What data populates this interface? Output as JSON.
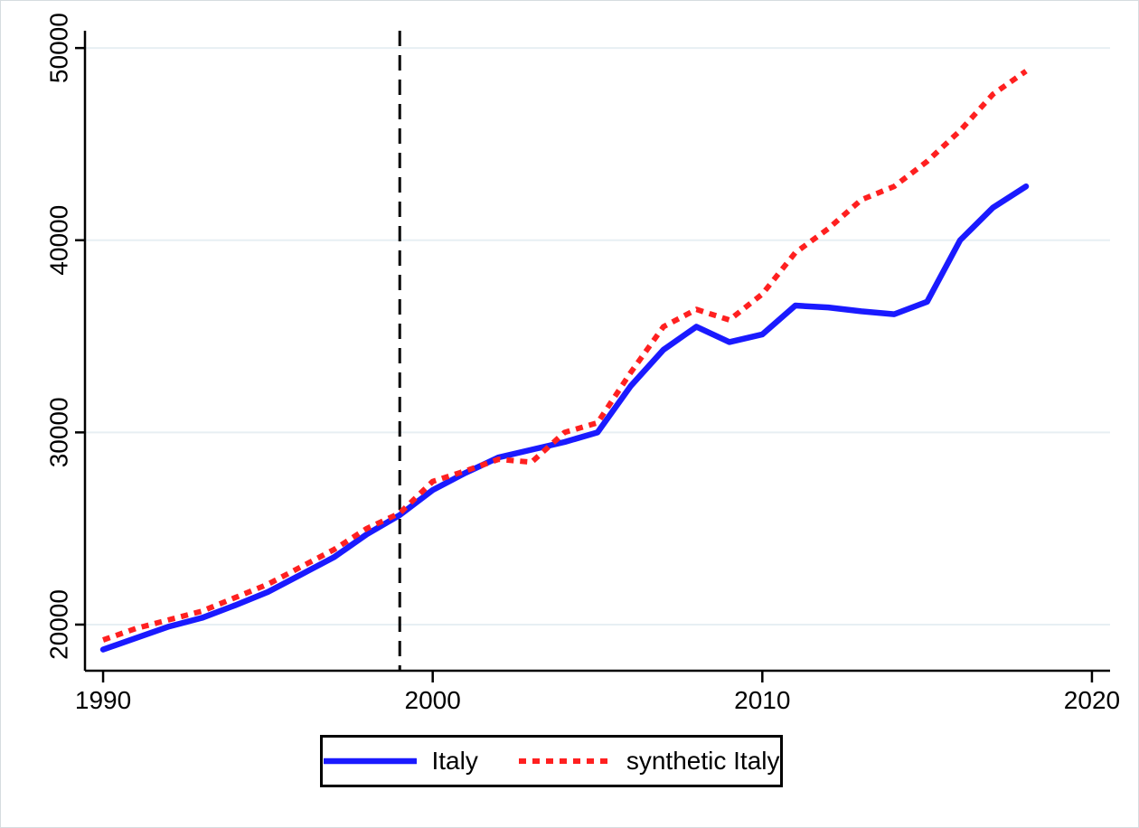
{
  "chart_data": {
    "type": "line",
    "title": "",
    "xlabel": "",
    "ylabel": "",
    "x": [
      1990,
      1991,
      1992,
      1993,
      1994,
      1995,
      1996,
      1997,
      1998,
      1999,
      2000,
      2001,
      2002,
      2003,
      2004,
      2005,
      2006,
      2007,
      2008,
      2009,
      2010,
      2011,
      2012,
      2013,
      2014,
      2015,
      2016,
      2017,
      2018
    ],
    "series": [
      {
        "name": "Italy",
        "color": "#1a1aff",
        "style": "solid",
        "values": [
          18700,
          19300,
          19900,
          20350,
          21000,
          21700,
          22600,
          23500,
          24700,
          25700,
          27000,
          27900,
          28700,
          29100,
          29500,
          30000,
          32400,
          34300,
          35500,
          34700,
          35100,
          36600,
          36500,
          36300,
          36150,
          36800,
          40000,
          41700,
          42800
        ]
      },
      {
        "name": "synthetic Italy",
        "color": "#ff2020",
        "style": "dotted",
        "values": [
          19200,
          19800,
          20250,
          20700,
          21400,
          22100,
          23000,
          23900,
          25000,
          25800,
          27450,
          28000,
          28600,
          28450,
          30000,
          30500,
          33100,
          35500,
          36400,
          35850,
          37200,
          39350,
          40600,
          42100,
          42800,
          44100,
          45700,
          47600,
          48800
        ]
      }
    ],
    "x_ticks": [
      1990,
      2000,
      2010,
      2020
    ],
    "y_ticks": [
      20000,
      30000,
      40000,
      50000
    ],
    "xlim": [
      1989.45,
      2020.55
    ],
    "ylim": [
      17600,
      50900
    ],
    "grid": "horizontal",
    "gridline_color": "#e7eff3",
    "axis_color": "#000000",
    "reference_line": {
      "axis": "x",
      "value": 1999,
      "style": "dashed",
      "color": "#000000"
    },
    "legend": {
      "position": "bottom",
      "entries": [
        "Italy",
        "synthetic Italy"
      ]
    }
  },
  "legend": {
    "items": [
      {
        "label": "Italy"
      },
      {
        "label": "synthetic Italy"
      }
    ]
  }
}
